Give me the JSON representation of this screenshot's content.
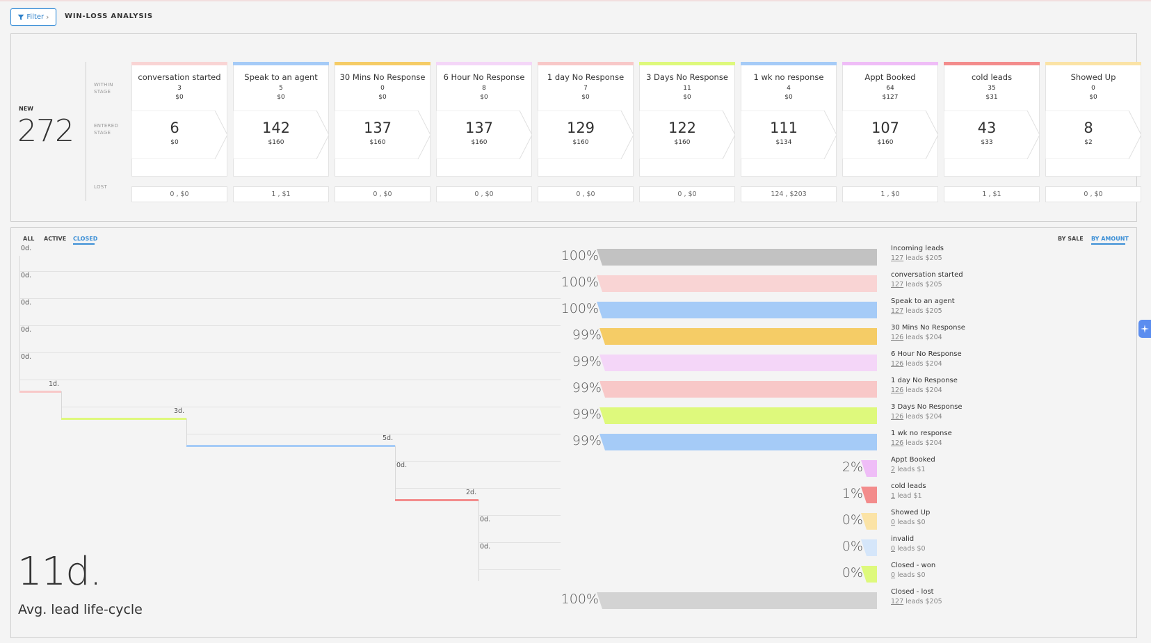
{
  "header": {
    "filter_label": "Filter",
    "filter_chevron": "›",
    "title": "WIN-LOSS ANALYSIS"
  },
  "summary": {
    "new_label": "NEW",
    "new_count": "272",
    "labels": {
      "within": "WITHIN\nSTAGE",
      "entered": "ENTERED\nSTAGE",
      "lost": "LOST"
    }
  },
  "stages": [
    {
      "name": "conversation started",
      "color": "#f9d4d4",
      "within_count": "3",
      "within_amount": "$0",
      "entered_count": "6",
      "entered_amount": "$0",
      "lost": "0 , $0"
    },
    {
      "name": "Speak to an agent",
      "color": "#a5cbf7",
      "within_count": "5",
      "within_amount": "$0",
      "entered_count": "142",
      "entered_amount": "$160",
      "lost": "1 , $1"
    },
    {
      "name": "30 Mins No Response",
      "color": "#f5cc66",
      "within_count": "0",
      "within_amount": "$0",
      "entered_count": "137",
      "entered_amount": "$160",
      "lost": "0 , $0"
    },
    {
      "name": "6 Hour No Response",
      "color": "#f4d6f8",
      "within_count": "8",
      "within_amount": "$0",
      "entered_count": "137",
      "entered_amount": "$160",
      "lost": "0 , $0"
    },
    {
      "name": "1 day No Response",
      "color": "#f8c8c8",
      "within_count": "7",
      "within_amount": "$0",
      "entered_count": "129",
      "entered_amount": "$160",
      "lost": "0 , $0"
    },
    {
      "name": "3 Days No Response",
      "color": "#def97c",
      "within_count": "11",
      "within_amount": "$0",
      "entered_count": "122",
      "entered_amount": "$160",
      "lost": "0 , $0"
    },
    {
      "name": "1 wk no response",
      "color": "#a5cbf7",
      "within_count": "4",
      "within_amount": "$0",
      "entered_count": "111",
      "entered_amount": "$134",
      "lost": "124 , $203"
    },
    {
      "name": "Appt Booked",
      "color": "#efbdf7",
      "within_count": "64",
      "within_amount": "$127",
      "entered_count": "107",
      "entered_amount": "$160",
      "lost": "1 , $0"
    },
    {
      "name": "cold leads",
      "color": "#f38c8c",
      "within_count": "35",
      "within_amount": "$31",
      "entered_count": "43",
      "entered_amount": "$33",
      "lost": "1 , $1"
    },
    {
      "name": "Showed Up",
      "color": "#fbe3a6",
      "within_count": "0",
      "within_amount": "$0",
      "entered_count": "8",
      "entered_amount": "$2",
      "lost": "0 , $0"
    }
  ],
  "tabs": {
    "all": "ALL",
    "active": "ACTIVE",
    "closed": "CLOSED",
    "active_tab": "CLOSED"
  },
  "sort": {
    "by_sale": "BY SALE",
    "by_amount": "BY AMOUNT",
    "active": "BY AMOUNT"
  },
  "timeline": {
    "avg_value": "11d.",
    "avg_label": "Avg. lead life-cycle",
    "steps": [
      {
        "label": "0d.",
        "days": 0
      },
      {
        "label": "0d.",
        "days": 0
      },
      {
        "label": "0d.",
        "days": 0
      },
      {
        "label": "0d.",
        "days": 0
      },
      {
        "label": "0d.",
        "days": 0
      },
      {
        "label": "1d.",
        "days": 1,
        "color": "#f8c8c8"
      },
      {
        "label": "3d.",
        "days": 3,
        "color": "#def97c"
      },
      {
        "label": "5d.",
        "days": 5,
        "color": "#a5cbf7"
      },
      {
        "label": "0d.",
        "days": 0
      },
      {
        "label": "2d.",
        "days": 2,
        "color": "#f38c8c"
      },
      {
        "label": "0d.",
        "days": 0
      },
      {
        "label": "0d.",
        "days": 0
      }
    ]
  },
  "funnel": [
    {
      "name": "Incoming leads",
      "count": "127",
      "unit": "leads",
      "amount": "$205",
      "pct_label": "100%",
      "pct": 100,
      "color": "#c2c2c2"
    },
    {
      "name": "conversation started",
      "count": "127",
      "unit": "leads",
      "amount": "$205",
      "pct_label": "100%",
      "pct": 100,
      "color": "#f9d4d4"
    },
    {
      "name": "Speak to an agent",
      "count": "127",
      "unit": "leads",
      "amount": "$205",
      "pct_label": "100%",
      "pct": 100,
      "color": "#a5cbf7"
    },
    {
      "name": "30 Mins No Response",
      "count": "126",
      "unit": "leads",
      "amount": "$204",
      "pct_label": "99%",
      "pct": 99,
      "color": "#f5cc66"
    },
    {
      "name": "6 Hour No Response",
      "count": "126",
      "unit": "leads",
      "amount": "$204",
      "pct_label": "99%",
      "pct": 99,
      "color": "#f4d6f8"
    },
    {
      "name": "1 day No Response",
      "count": "126",
      "unit": "leads",
      "amount": "$204",
      "pct_label": "99%",
      "pct": 99,
      "color": "#f8c8c8"
    },
    {
      "name": "3 Days No Response",
      "count": "126",
      "unit": "leads",
      "amount": "$204",
      "pct_label": "99%",
      "pct": 99,
      "color": "#def97c"
    },
    {
      "name": "1 wk no response",
      "count": "126",
      "unit": "leads",
      "amount": "$204",
      "pct_label": "99%",
      "pct": 99,
      "color": "#a5cbf7"
    },
    {
      "name": "Appt Booked",
      "count": "2",
      "unit": "leads",
      "amount": "$1",
      "pct_label": "2%",
      "pct": 2,
      "color": "#efbdf7"
    },
    {
      "name": "cold leads",
      "count": "1",
      "unit": "lead",
      "amount": "$1",
      "pct_label": "1%",
      "pct": 1,
      "color": "#f38c8c"
    },
    {
      "name": "Showed Up",
      "count": "0",
      "unit": "leads",
      "amount": "$0",
      "pct_label": "0%",
      "pct": 0,
      "color": "#fbe3a6"
    },
    {
      "name": "invalid",
      "count": "0",
      "unit": "leads",
      "amount": "$0",
      "pct_label": "0%",
      "pct": 0,
      "color": "#d5e6fa"
    },
    {
      "name": "Closed - won",
      "count": "0",
      "unit": "leads",
      "amount": "$0",
      "pct_label": "0%",
      "pct": 0,
      "color": "#def97c"
    },
    {
      "name": "Closed - lost",
      "count": "127",
      "unit": "leads",
      "amount": "$205",
      "pct_label": "100%",
      "pct": 100,
      "color": "#d3d3d3"
    }
  ],
  "side_widget_icon": "sparkle-icon"
}
